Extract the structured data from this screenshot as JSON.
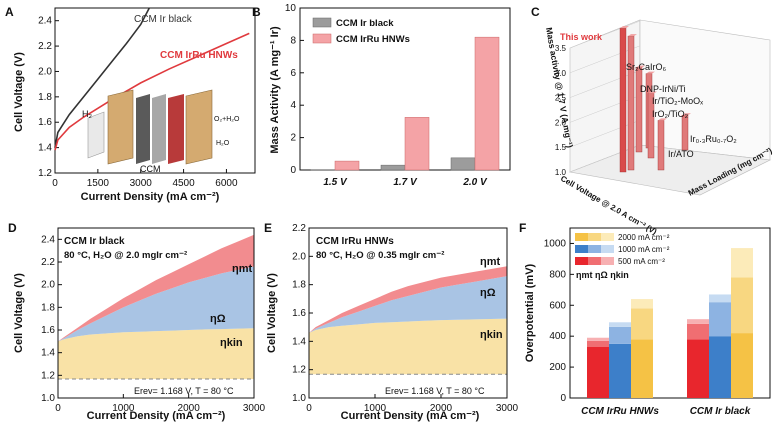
{
  "colors": {
    "black_series": "#333333",
    "red_series": "#e03a3e",
    "grey_bar": "#9c9c9c",
    "pink_bar": "#f4a3a6",
    "mt": "#f28c8f",
    "ohm": "#a9c4e4",
    "kin": "#f9e2a6",
    "oh_red1": "#e8262d",
    "oh_red2": "#f06e72",
    "oh_red3": "#f7b0b2",
    "oh_blue1": "#3d7fc9",
    "oh_blue2": "#8db3e2",
    "oh_blue3": "#c6dbf2",
    "oh_yel1": "#f5c245",
    "oh_yel2": "#f8d781",
    "oh_yel3": "#fcebb9"
  },
  "chart_data": [
    {
      "panel": "A",
      "type": "line",
      "xlabel": "Current Density (mA cm⁻²)",
      "ylabel": "Cell Voltage (V)",
      "xlim": [
        0,
        7000
      ],
      "ylim": [
        1.2,
        2.5
      ],
      "xticks": [
        0,
        1500,
        3000,
        4500,
        6000
      ],
      "yticks": [
        1.2,
        1.4,
        1.6,
        1.8,
        2.0,
        2.2,
        2.4
      ],
      "series": [
        {
          "name": "CCM Ir black",
          "x": [
            0,
            100,
            500,
            1000,
            1500,
            2000,
            2500,
            3000,
            3300
          ],
          "y": [
            1.4,
            1.52,
            1.66,
            1.8,
            1.94,
            2.08,
            2.22,
            2.37,
            2.5
          ]
        },
        {
          "name": "CCM IrRu HNWs",
          "x": [
            0,
            100,
            500,
            1000,
            2000,
            3000,
            4000,
            5000,
            6000,
            6800
          ],
          "y": [
            1.38,
            1.46,
            1.56,
            1.64,
            1.78,
            1.91,
            2.02,
            2.12,
            2.22,
            2.3
          ]
        }
      ],
      "labels": {
        "ir": "CCM Ir black",
        "iru": "CCM IrRu HNWs"
      },
      "inset": {
        "caption": "CCM",
        "h2": "H₂",
        "o2": "O₂+H₂O",
        "h2o": "H₂O"
      }
    },
    {
      "panel": "B",
      "type": "bar",
      "ylabel": "Mass Activity (A mg⁻¹ Ir)",
      "categories": [
        "1.5 V",
        "1.7 V",
        "2.0 V"
      ],
      "ylim": [
        0,
        10
      ],
      "yticks": [
        0,
        2,
        4,
        6,
        8,
        10
      ],
      "series": [
        {
          "name": "CCM Ir black",
          "values": [
            0.02,
            0.3,
            0.75
          ]
        },
        {
          "name": "CCM IrRu HNWs",
          "values": [
            0.55,
            3.25,
            8.2
          ]
        }
      ]
    },
    {
      "panel": "C",
      "type": "bar",
      "ylabel": "Mass activity @ 1.7 V (A mg⁻¹)",
      "xlabel": "Cell Voltage @ 2.0 A cm⁻² (V)",
      "zlabel": "Mass Loading (mg cm⁻²)",
      "zticks": [
        1.0,
        1.5,
        2.0,
        2.5,
        3.0,
        3.5
      ],
      "items": [
        {
          "name": "This work",
          "value": 3.5
        },
        {
          "name": "Sr₂CaIrO₆",
          "value": 3.3
        },
        {
          "name": "DNP-IrNi/Ti",
          "value": 2.3
        },
        {
          "name": "Ir/TiO₂-MoOₓ",
          "value": 2.1
        },
        {
          "name": "IrO₂/TiO₂",
          "value": 1.9
        },
        {
          "name": "Ir₀.₃Ru₀.₇O₂",
          "value": 1.3
        },
        {
          "name": "Ir/ATO",
          "value": 1.6
        }
      ]
    },
    {
      "panel": "D",
      "type": "area",
      "title": "CCM Ir black",
      "condition": "80 °C, H₂O  @ 2.0 mgIr cm⁻²",
      "erev": "Erev= 1.168 V, T = 80 °C",
      "xlabel": "Current Density (mA cm⁻²)",
      "ylabel": "Cell Voltage (V)",
      "xlim": [
        0,
        3000
      ],
      "ylim": [
        1.0,
        2.5
      ],
      "xticks": [
        0,
        1000,
        2000,
        3000
      ],
      "yticks": [
        1.0,
        1.2,
        1.4,
        1.6,
        1.8,
        2.0,
        2.2,
        2.4
      ],
      "erev_v": 1.168,
      "x": [
        0,
        100,
        300,
        500,
        750,
        1000,
        1250,
        1500,
        1750,
        2000,
        2250,
        2500,
        2750,
        3000
      ],
      "kin": [
        1.5,
        1.52,
        1.545,
        1.56,
        1.57,
        1.58,
        1.585,
        1.59,
        1.595,
        1.6,
        1.605,
        1.608,
        1.612,
        1.615
      ],
      "ohm": [
        1.5,
        1.53,
        1.6,
        1.66,
        1.73,
        1.8,
        1.86,
        1.92,
        1.97,
        2.02,
        2.06,
        2.1,
        2.13,
        2.16
      ],
      "total": [
        1.5,
        1.54,
        1.62,
        1.7,
        1.79,
        1.88,
        1.96,
        2.04,
        2.11,
        2.18,
        2.25,
        2.32,
        2.38,
        2.44
      ],
      "labels": {
        "mt": "ηmt",
        "ohm": "ηΩ",
        "kin": "ηkin"
      }
    },
    {
      "panel": "E",
      "type": "area",
      "title": "CCM IrRu HNWs",
      "condition": "80 °C, H₂O  @ 0.35 mgIr cm⁻²",
      "erev": "Erev= 1.168 V, T = 80 °C",
      "xlabel": "Current Density (mA cm⁻²)",
      "ylabel": "Cell Voltage (V)",
      "xlim": [
        0,
        3000
      ],
      "ylim": [
        1.0,
        2.2
      ],
      "xticks": [
        0,
        1000,
        2000,
        3000
      ],
      "yticks": [
        1.0,
        1.2,
        1.4,
        1.6,
        1.8,
        2.0,
        2.2
      ],
      "erev_v": 1.168,
      "x": [
        0,
        100,
        300,
        500,
        750,
        1000,
        1250,
        1500,
        1750,
        2000,
        2250,
        2500,
        2750,
        3000
      ],
      "kin": [
        1.46,
        1.48,
        1.5,
        1.51,
        1.52,
        1.53,
        1.535,
        1.54,
        1.545,
        1.55,
        1.552,
        1.555,
        1.558,
        1.56
      ],
      "ohm": [
        1.46,
        1.49,
        1.53,
        1.57,
        1.61,
        1.65,
        1.69,
        1.72,
        1.75,
        1.78,
        1.8,
        1.82,
        1.84,
        1.86
      ],
      "total": [
        1.46,
        1.5,
        1.55,
        1.6,
        1.65,
        1.7,
        1.75,
        1.79,
        1.82,
        1.85,
        1.87,
        1.89,
        1.91,
        1.93
      ],
      "labels": {
        "mt": "ηmt",
        "ohm": "ηΩ",
        "kin": "ηkin"
      }
    },
    {
      "panel": "F",
      "type": "bar",
      "ylabel": "Overpotential (mV)",
      "ylim": [
        0,
        1100
      ],
      "yticks": [
        0,
        200,
        400,
        600,
        800,
        1000
      ],
      "categories": [
        "CCM IrRu HNWs",
        "CCM Ir black"
      ],
      "legend": [
        "2000 mA cm⁻²",
        "1000 mA cm⁻²",
        "500 mA cm⁻²"
      ],
      "eta_label": "ηmt ηΩ ηkin",
      "groups": [
        {
          "name": "CCM IrRu HNWs",
          "bars": [
            {
              "current": "500 mA cm⁻²",
              "kin": 330,
              "ohm": 40,
              "mt": 20
            },
            {
              "current": "1000 mA cm⁻²",
              "kin": 350,
              "ohm": 110,
              "mt": 30
            },
            {
              "current": "2000 mA cm⁻²",
              "kin": 380,
              "ohm": 200,
              "mt": 60
            }
          ]
        },
        {
          "name": "CCM Ir black",
          "bars": [
            {
              "current": "500 mA cm⁻²",
              "kin": 380,
              "ohm": 100,
              "mt": 30
            },
            {
              "current": "1000 mA cm⁻²",
              "kin": 400,
              "ohm": 220,
              "mt": 50
            },
            {
              "current": "2000 mA cm⁻²",
              "kin": 420,
              "ohm": 360,
              "mt": 190
            }
          ]
        }
      ]
    }
  ],
  "panel_labels": [
    "A",
    "B",
    "C",
    "D",
    "E",
    "F"
  ]
}
